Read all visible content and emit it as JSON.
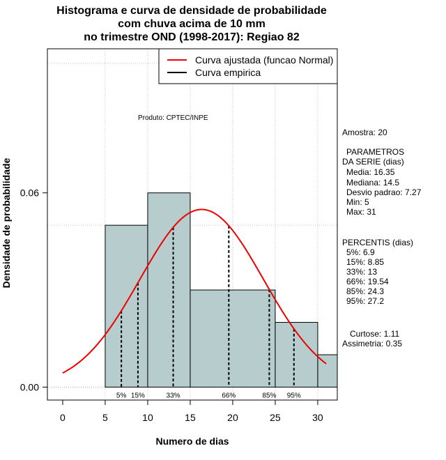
{
  "chart_data": {
    "type": "bar",
    "title_lines": [
      "Histograma e curva de densidade de probabilidade",
      "com chuva acima de 10 mm",
      "no trimestre OND (1998-2017): Regiao 82"
    ],
    "xlabel": "Numero de dias",
    "ylabel": "Densidade de probabilidade",
    "xlim": [
      -1.8,
      32.3
    ],
    "ylim": [
      -0.004,
      0.1045
    ],
    "x_ticks": [
      0,
      5,
      10,
      15,
      20,
      25,
      30
    ],
    "y_ticks": [
      0.0,
      0.06
    ],
    "y_tick_labels": [
      "0.00",
      "0.06"
    ],
    "bins": [
      {
        "from": 5,
        "to": 10,
        "density": 0.05
      },
      {
        "from": 10,
        "to": 15,
        "density": 0.06
      },
      {
        "from": 15,
        "to": 25,
        "density": 0.03
      },
      {
        "from": 25,
        "to": 30,
        "density": 0.02
      },
      {
        "from": 30,
        "to": 32.3,
        "density": 0.01
      }
    ],
    "fitted_curve": {
      "name": "Curva ajustada (funcao Normal)",
      "mean": 16.35,
      "sd": 7.27,
      "x_from": 0,
      "x_to": 31,
      "color": "#ee0000"
    },
    "empirical_curve": {
      "name": "Curva empirica",
      "color": "#000000"
    },
    "percentiles": [
      {
        "label": "5%",
        "x": 6.9
      },
      {
        "label": "15%",
        "x": 8.85
      },
      {
        "label": "33%",
        "x": 13
      },
      {
        "label": "66%",
        "x": 19.54
      },
      {
        "label": "85%",
        "x": 24.3
      },
      {
        "label": "95%",
        "x": 27.2
      }
    ],
    "grid_y": [
      0.0,
      0.05,
      0.1
    ],
    "grid_x": [
      5,
      10,
      15,
      20,
      25,
      30
    ],
    "legend_position": "top-right",
    "annotation": "Produto: CPTEC/INPE",
    "bar_fill": "#b7cccc"
  },
  "stats": {
    "sample": "Amostra: 20",
    "params_title_1": "PARAMETROS",
    "params_title_2": "DA SERIE (dias)",
    "params": [
      "Media: 16.35",
      "Mediana: 14.5",
      "Desvio padrao: 7.27",
      "Min: 5",
      "Max: 31"
    ],
    "percentis_title": "PERCENTIS (dias)",
    "percentis": [
      "5%: 6.9",
      "15%: 8.85",
      "33%: 13",
      "66%: 19.54",
      "85%: 24.3",
      "95%: 27.2"
    ],
    "curtose": "Curtose: 1.11",
    "assimetria": "Assimetria: 0.35"
  }
}
